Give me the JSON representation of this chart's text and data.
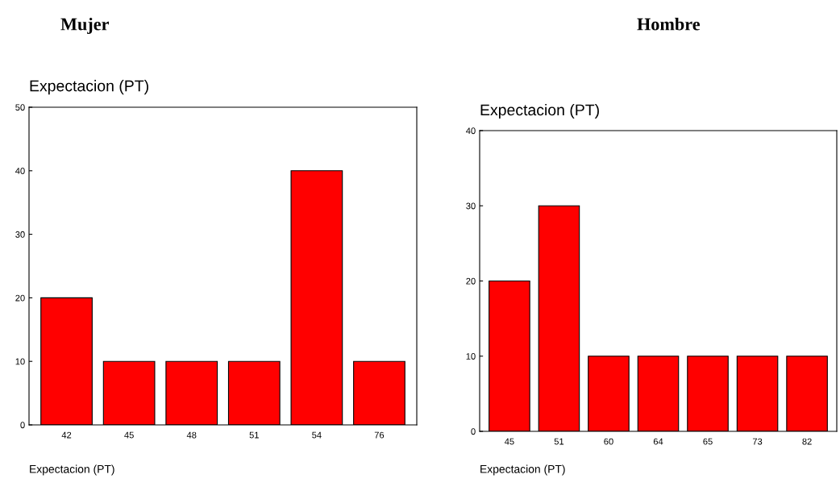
{
  "chart_data": [
    {
      "type": "bar",
      "title": "Mujer",
      "ylabel": "Expectacion (PT)",
      "xlabel": "Expectacion (PT)",
      "categories": [
        "42",
        "45",
        "48",
        "51",
        "54",
        "76"
      ],
      "values": [
        20,
        10,
        10,
        10,
        40,
        10
      ],
      "color": "#ff0000",
      "ylim": [
        0,
        50
      ],
      "yticks": [
        0,
        10,
        20,
        30,
        40,
        50
      ],
      "grid": false,
      "legend": false
    },
    {
      "type": "bar",
      "title": "Hombre",
      "ylabel": "Expectacion (PT)",
      "xlabel": "Expectacion (PT)",
      "categories": [
        "45",
        "51",
        "60",
        "64",
        "65",
        "73",
        "82"
      ],
      "values": [
        20,
        30,
        10,
        10,
        10,
        10,
        10
      ],
      "color": "#ff0000",
      "ylim": [
        0,
        40
      ],
      "yticks": [
        0,
        10,
        20,
        30,
        40
      ],
      "grid": false,
      "legend": false
    }
  ]
}
